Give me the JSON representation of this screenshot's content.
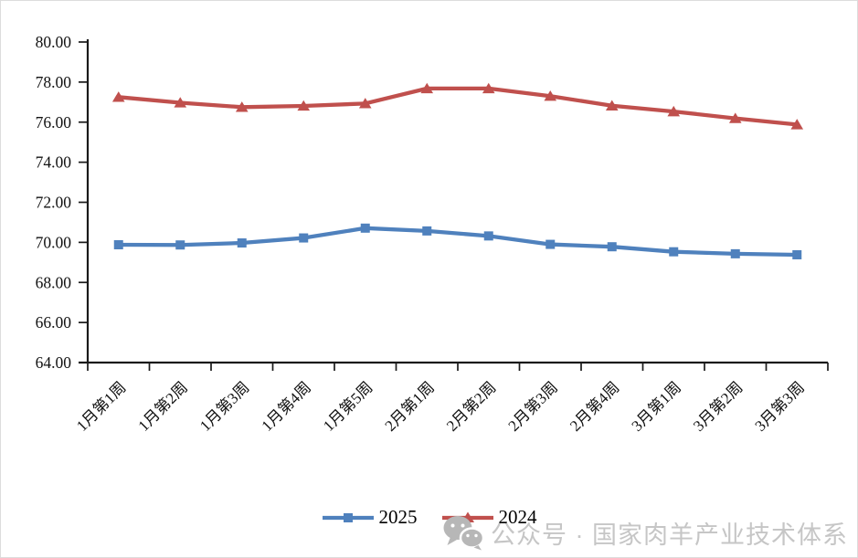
{
  "chart_data": {
    "type": "line",
    "title": "",
    "categories": [
      "1月第1周",
      "1月第2周",
      "1月第3周",
      "1月第4周",
      "1月第5周",
      "2月第1周",
      "2月第2周",
      "2月第3周",
      "2月第4周",
      "3月第1周",
      "3月第2周",
      "3月第3周"
    ],
    "series": [
      {
        "name": "2025",
        "color": "#4F81BD",
        "marker": "square",
        "values": [
          69.88,
          69.87,
          69.97,
          70.22,
          70.71,
          70.57,
          70.32,
          69.9,
          69.78,
          69.53,
          69.43,
          69.38
        ]
      },
      {
        "name": "2024",
        "color": "#C0504D",
        "marker": "triangle",
        "values": [
          77.25,
          76.97,
          76.75,
          76.81,
          76.93,
          77.68,
          77.68,
          77.3,
          76.82,
          76.53,
          76.19,
          75.88
        ]
      }
    ],
    "ylim": [
      64,
      80
    ],
    "ytick_step": 2,
    "ytick_labels": [
      "64.00",
      "66.00",
      "68.00",
      "70.00",
      "72.00",
      "74.00",
      "76.00",
      "78.00",
      "80.00"
    ],
    "grid": false,
    "legend_position": "bottom",
    "axis_color": "#1a1a1a"
  },
  "watermark": {
    "icon": "wechat-icon",
    "text": "公众号 · 国家肉羊产业技术体系",
    "color": "#c6c6c6"
  }
}
